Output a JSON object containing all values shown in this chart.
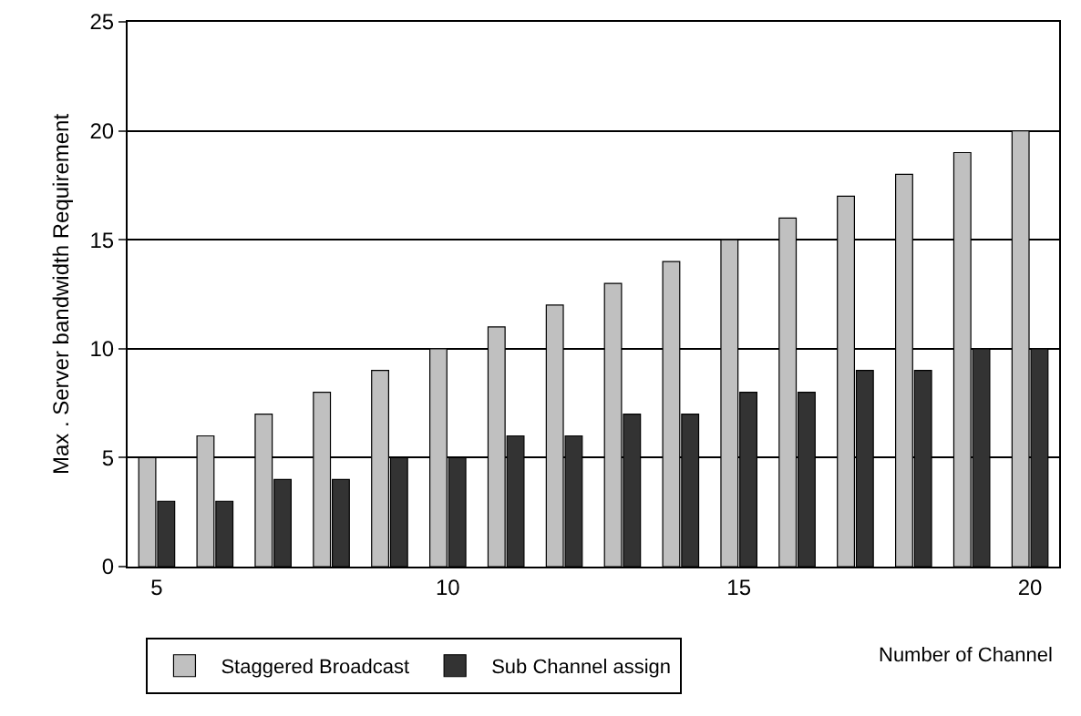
{
  "chart_data": {
    "type": "bar",
    "xlabel": "Number of Channel",
    "ylabel": "Max . Server bandwidth Requirement",
    "categories": [
      "5",
      null,
      null,
      null,
      null,
      "10",
      null,
      null,
      null,
      null,
      "15",
      null,
      null,
      null,
      null,
      "20"
    ],
    "series": [
      {
        "name": "Staggered Broadcast",
        "color": "#c0c0c0",
        "values": [
          5,
          6,
          7,
          8,
          9,
          10,
          11,
          12,
          13,
          14,
          15,
          16,
          17,
          18,
          19,
          20
        ]
      },
      {
        "name": "Sub Channel assign",
        "color": "#333333",
        "values": [
          3,
          3,
          4,
          4,
          5,
          5,
          6,
          6,
          7,
          7,
          8,
          8,
          9,
          9,
          10,
          10
        ]
      }
    ],
    "ylim": [
      0,
      25
    ],
    "yticks": [
      0,
      5,
      10,
      15,
      20,
      25
    ],
    "grid": "y",
    "legend": "bottom"
  }
}
